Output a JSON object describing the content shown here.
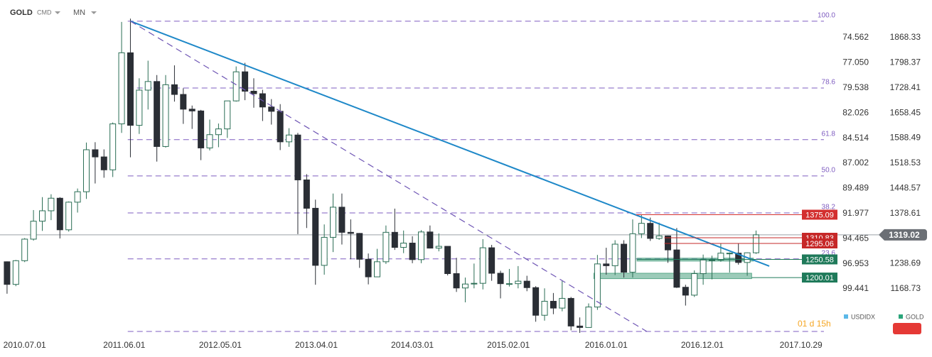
{
  "header": {
    "symbol": "GOLD",
    "market": "CMD",
    "interval": "MN"
  },
  "chart_data": {
    "type": "candlestick",
    "open": [
      1244,
      1181,
      1247,
      1307,
      1357,
      1386,
      1421,
      1333,
      1410,
      1439,
      1556,
      1536,
      1500,
      1628,
      1826,
      1624,
      1722,
      1746,
      1565,
      1737,
      1710,
      1669,
      1664,
      1561,
      1598,
      1614,
      1692,
      1773,
      1719,
      1712,
      1675,
      1663,
      1578,
      1597,
      1472,
      1393,
      1234,
      1312,
      1396,
      1326,
      1323,
      1251,
      1202,
      1244,
      1326,
      1284,
      1296,
      1250,
      1327,
      1282,
      1287,
      1211,
      1171,
      1182,
      1184,
      1283,
      1212,
      1183,
      1183,
      1190,
      1172,
      1095,
      1134,
      1115,
      1142,
      1065,
      1061,
      1118,
      1238,
      1233,
      1293,
      1215,
      1322,
      1351,
      1309,
      1316,
      1277,
      1173,
      1151,
      1211,
      1249,
      1249,
      1268,
      1268,
      1242,
      1269
    ],
    "high": [
      1245,
      1249,
      1310,
      1388,
      1424,
      1432,
      1424,
      1412,
      1448,
      1576,
      1577,
      1557,
      1632,
      1912,
      1921,
      1755,
      1804,
      1764,
      1764,
      1791,
      1727,
      1679,
      1667,
      1640,
      1629,
      1692,
      1788,
      1798,
      1755,
      1723,
      1697,
      1683,
      1616,
      1603,
      1488,
      1417,
      1348,
      1434,
      1434,
      1362,
      1324,
      1267,
      1280,
      1345,
      1392,
      1331,
      1315,
      1332,
      1345,
      1323,
      1287,
      1255,
      1200,
      1239,
      1307,
      1291,
      1219,
      1224,
      1232,
      1205,
      1176,
      1170,
      1157,
      1191,
      1146,
      1089,
      1128,
      1263,
      1283,
      1304,
      1304,
      1362,
      1375,
      1367,
      1353,
      1317,
      1338,
      1180,
      1220,
      1264,
      1261,
      1295,
      1270,
      1296,
      1270,
      1331
    ],
    "low": [
      1155,
      1176,
      1243,
      1303,
      1330,
      1360,
      1309,
      1328,
      1381,
      1419,
      1462,
      1478,
      1480,
      1603,
      1535,
      1600,
      1668,
      1523,
      1562,
      1690,
      1628,
      1614,
      1527,
      1554,
      1563,
      1589,
      1690,
      1694,
      1673,
      1636,
      1626,
      1555,
      1564,
      1321,
      1338,
      1180,
      1208,
      1271,
      1292,
      1251,
      1227,
      1181,
      1202,
      1238,
      1277,
      1268,
      1240,
      1240,
      1281,
      1273,
      1206,
      1160,
      1131,
      1170,
      1167,
      1191,
      1142,
      1175,
      1170,
      1162,
      1077,
      1080,
      1098,
      1106,
      1053,
      1046,
      1061,
      1110,
      1208,
      1207,
      1200,
      1200,
      1310,
      1302,
      1305,
      1241,
      1171,
      1122,
      1146,
      1180,
      1195,
      1244,
      1214,
      1236,
      1205,
      1266
    ],
    "close": [
      1181,
      1247,
      1307,
      1357,
      1386,
      1421,
      1333,
      1410,
      1439,
      1556,
      1536,
      1500,
      1628,
      1826,
      1624,
      1722,
      1746,
      1565,
      1737,
      1710,
      1669,
      1664,
      1561,
      1598,
      1614,
      1692,
      1773,
      1719,
      1712,
      1675,
      1663,
      1578,
      1597,
      1472,
      1393,
      1234,
      1312,
      1396,
      1326,
      1323,
      1251,
      1202,
      1244,
      1326,
      1284,
      1296,
      1250,
      1327,
      1282,
      1287,
      1211,
      1171,
      1182,
      1184,
      1283,
      1212,
      1183,
      1183,
      1190,
      1172,
      1095,
      1134,
      1115,
      1142,
      1065,
      1061,
      1118,
      1238,
      1233,
      1293,
      1215,
      1322,
      1351,
      1309,
      1316,
      1277,
      1173,
      1151,
      1211,
      1249,
      1249,
      1268,
      1268,
      1242,
      1269,
      1319
    ],
    "up_color": "#2b6e55",
    "down_color": "#2a2e35",
    "xlim": [
      -0.8,
      94.4
    ],
    "xticks": [
      {
        "value": 2,
        "label": "2010.07.01"
      },
      {
        "value": 13.3,
        "label": "2011.06.01"
      },
      {
        "value": 24.2,
        "label": "2012.05.01"
      },
      {
        "value": 35.1,
        "label": "2013.04.01"
      },
      {
        "value": 46,
        "label": "2014.03.01"
      },
      {
        "value": 56.9,
        "label": "2015.02.01"
      },
      {
        "value": 68,
        "label": "2016.01.01"
      },
      {
        "value": 78.9,
        "label": "2016.12.01"
      },
      {
        "value": 90.1,
        "label": "2017.10.29"
      }
    ],
    "ylim": [
      1044,
      1973
    ],
    "yticks": [
      1868.33,
      1798.37,
      1728.41,
      1658.45,
      1588.49,
      1518.53,
      1448.57,
      1378.61,
      1238.69,
      1168.73
    ],
    "y2lim": [
      103.87,
      70.837
    ],
    "y2ticks": [
      74.562,
      {
        "value": 77.05,
        "label": "77.050"
      },
      79.538,
      82.026,
      84.514,
      87.002,
      89.489,
      91.977,
      94.465,
      96.953,
      99.441
    ],
    "fib": {
      "color": "#7e5cc0",
      "x": [
        13.7,
        92.7
      ],
      "base": 1050,
      "levels": [
        {
          "label": "100.0",
          "value": 1914
        },
        {
          "label": "78.6",
          "value": 1728
        },
        {
          "label": "61.8",
          "value": 1584
        },
        {
          "label": "50.0",
          "value": 1483
        },
        {
          "label": "38.2",
          "value": 1380
        },
        {
          "label": "23.6",
          "value": 1252
        }
      ]
    },
    "trendlines": [
      {
        "color": "#1e88c8",
        "style": "solid",
        "x": [
          14,
          86.5
        ],
        "y": [
          1914,
          1232
        ]
      },
      {
        "color": "#6f56b5",
        "style": "dashed",
        "x": [
          14,
          72.6
        ],
        "y": [
          1914,
          1050
        ]
      }
    ],
    "zones": [
      {
        "color": "#5aa88a",
        "x": [
          71.5,
          84.7
        ],
        "y": [
          1246,
          1254
        ]
      },
      {
        "color": "#5aa88a",
        "x": [
          66.6,
          84.5
        ],
        "y": [
          1197,
          1212
        ]
      }
    ],
    "price_lines": [
      {
        "value": 1375.09,
        "color": "#d32f2f",
        "from": 71.4
      },
      {
        "value": 1310.83,
        "color": "#c62828",
        "from": 74.6
      },
      {
        "value": 1295.06,
        "color": "#c62828",
        "from": 74.6
      },
      {
        "value": 1250.58,
        "color": "#1f7a5a",
        "from": 71.5
      },
      {
        "value": 1200.01,
        "color": "#1f7a5a",
        "from": 84.5
      }
    ],
    "last_price": 1319.02,
    "last_color": "#6b6f75",
    "legend": [
      {
        "name": "USDIDX",
        "color": "#5bb8e8"
      },
      {
        "name": "GOLD",
        "color": "#2aa57a"
      }
    ],
    "timer": "01 d 15h"
  }
}
